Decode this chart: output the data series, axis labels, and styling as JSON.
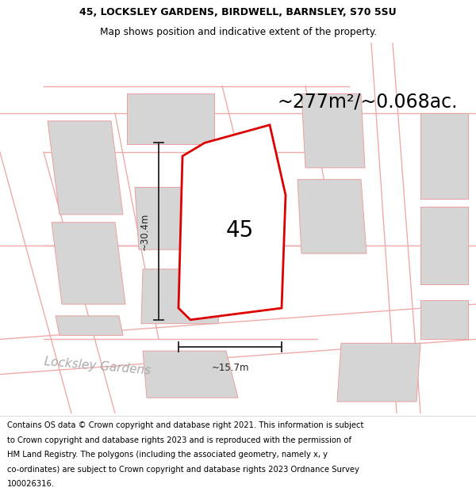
{
  "title_line1": "45, LOCKSLEY GARDENS, BIRDWELL, BARNSLEY, S70 5SU",
  "title_line2": "Map shows position and indicative extent of the property.",
  "area_text": "~277m²/~0.068ac.",
  "property_number": "45",
  "dim_height": "~30.4m",
  "dim_width": "~15.7m",
  "street_name": "Locksley Gardens",
  "footer_lines": [
    "Contains OS data © Crown copyright and database right 2021. This information is subject",
    "to Crown copyright and database rights 2023 and is reproduced with the permission of",
    "HM Land Registry. The polygons (including the associated geometry, namely x, y",
    "co-ordinates) are subject to Crown copyright and database rights 2023 Ordnance Survey",
    "100026316."
  ],
  "bg_color": "#ffffff",
  "map_bg_color": "#f0f0f0",
  "plot_fill_color": "#ffffff",
  "plot_edge_color": "#dd0000",
  "neighbor_fill_color": "#d5d5d5",
  "neighbor_edge_color": "#e8a0a0",
  "road_line_color": "#f0aaaa",
  "dim_color": "#222222",
  "title_fontsize": 9.0,
  "area_fontsize": 17,
  "label_fontsize": 20,
  "street_fontsize": 11,
  "footer_fontsize": 7.2,
  "title_bold": true,
  "subtitle_bold": false
}
